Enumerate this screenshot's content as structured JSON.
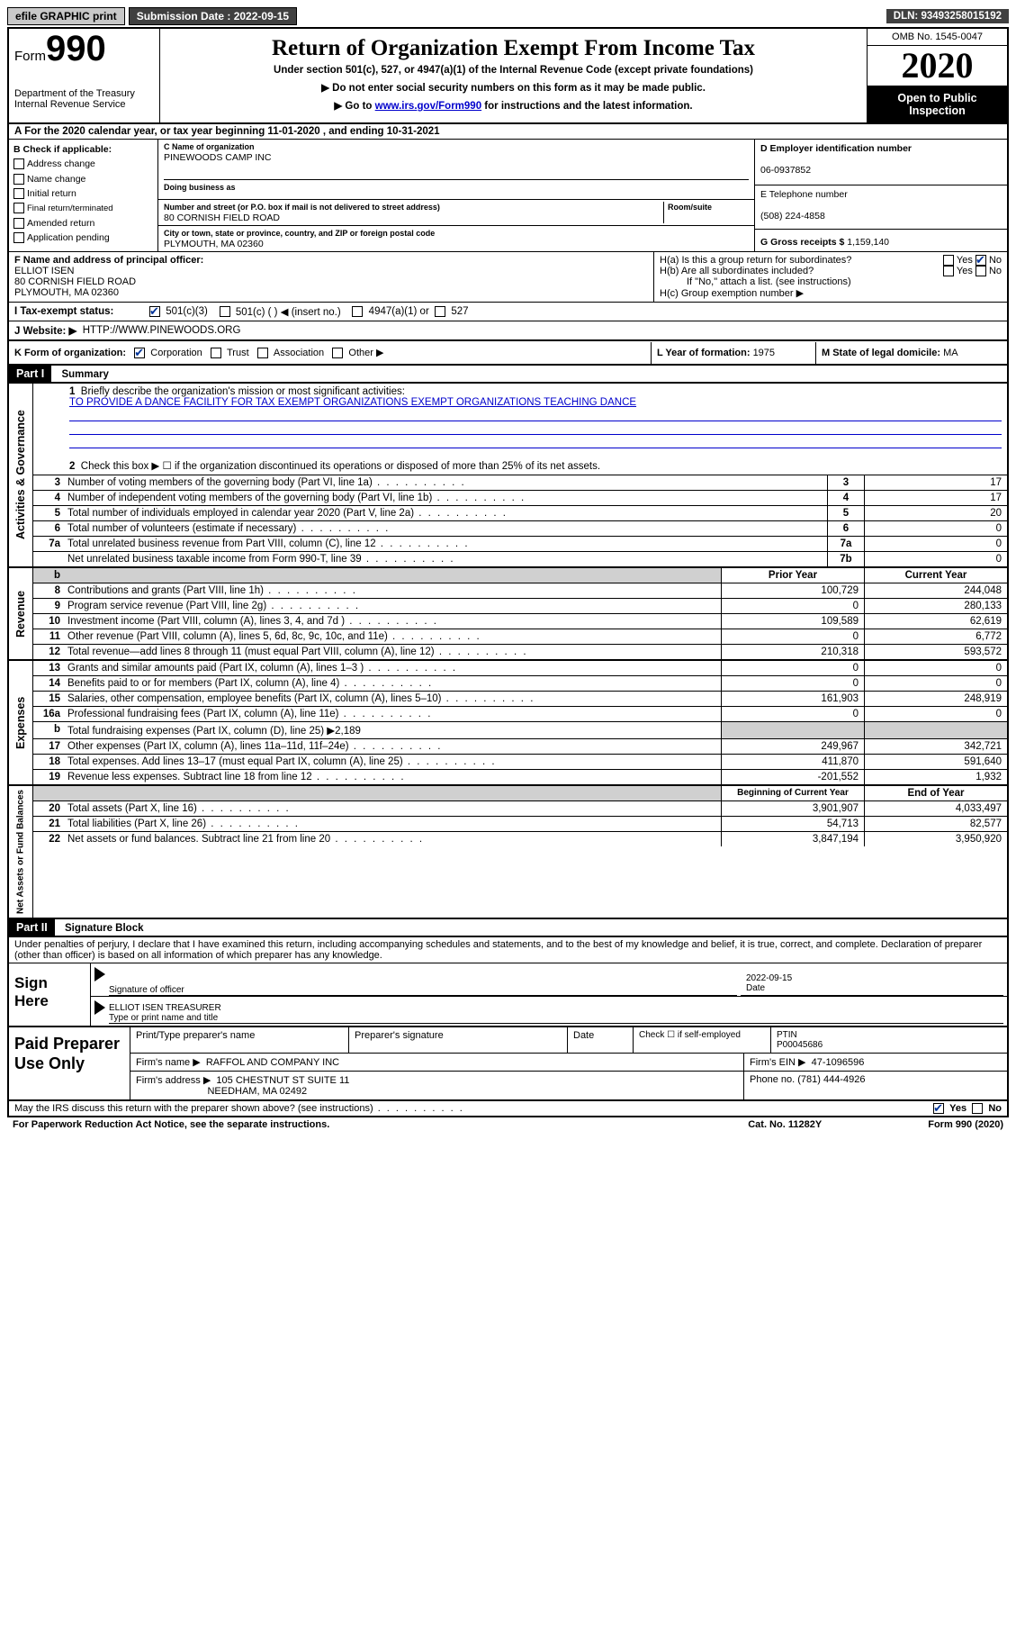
{
  "topbar": {
    "efile": "efile GRAPHIC print",
    "submission_label": "Submission Date : 2022-09-15",
    "dln": "DLN: 93493258015192"
  },
  "header": {
    "form_word": "Form",
    "form_num": "990",
    "dept1": "Department of the Treasury",
    "dept2": "Internal Revenue Service",
    "title": "Return of Organization Exempt From Income Tax",
    "sub1": "Under section 501(c), 527, or 4947(a)(1) of the Internal Revenue Code (except private foundations)",
    "sub2": "▶ Do not enter social security numbers on this form as it may be made public.",
    "sub3a": "▶ Go to ",
    "sub3link": "www.irs.gov/Form990",
    "sub3b": " for instructions and the latest information.",
    "omb": "OMB No. 1545-0047",
    "year": "2020",
    "open": "Open to Public Inspection"
  },
  "row_a": "A For the 2020 calendar year, or tax year beginning 11-01-2020   , and ending 10-31-2021",
  "section_b": {
    "b_label": "B Check if applicable:",
    "b_items": [
      "Address change",
      "Name change",
      "Initial return",
      "Final return/terminated",
      "Amended return",
      "Application pending"
    ],
    "c_label": "C Name of organization",
    "org_name": "PINEWOODS CAMP INC",
    "dba_label": "Doing business as",
    "street_label": "Number and street (or P.O. box if mail is not delivered to street address)",
    "room_label": "Room/suite",
    "street": "80 CORNISH FIELD ROAD",
    "city_label": "City or town, state or province, country, and ZIP or foreign postal code",
    "city": "PLYMOUTH, MA  02360",
    "d_label": "D Employer identification number",
    "ein": "06-0937852",
    "e_label": "E Telephone number",
    "phone": "(508) 224-4858",
    "g_label": "G Gross receipts $ ",
    "gross": "1,159,140"
  },
  "section_fh": {
    "f_label": "F Name and address of principal officer:",
    "officer_name": "ELLIOT ISEN",
    "officer_addr1": "80 CORNISH FIELD ROAD",
    "officer_addr2": "PLYMOUTH, MA  02360",
    "ha": "H(a)  Is this a group return for subordinates?",
    "hb": "H(b)  Are all subordinates included?",
    "hb_note": "If \"No,\" attach a list. (see instructions)",
    "hc": "H(c)  Group exemption number ▶",
    "yes": "Yes",
    "no": "No"
  },
  "tax_exempt": {
    "i_label": "I    Tax-exempt status:",
    "opt1": "501(c)(3)",
    "opt2": "501(c) (  ) ◀ (insert no.)",
    "opt3": "4947(a)(1) or",
    "opt4": "527"
  },
  "website": {
    "j_label": "J   Website: ▶",
    "url": "HTTP://WWW.PINEWOODS.ORG"
  },
  "row_k": {
    "k_label": "K Form of organization:",
    "opts": [
      "Corporation",
      "Trust",
      "Association",
      "Other ▶"
    ],
    "l_label": "L Year of formation: ",
    "l_val": "1975",
    "m_label": "M State of legal domicile: ",
    "m_val": "MA"
  },
  "part1": {
    "tag": "Part I",
    "title": "Summary",
    "q1": "Briefly describe the organization's mission or most significant activities:",
    "mission": "TO PROVIDE A DANCE FACILITY FOR TAX EXEMPT ORGANIZATIONS EXEMPT ORGANIZATIONS TEACHING DANCE",
    "q2": "Check this box ▶ ☐  if the organization discontinued its operations or disposed of more than 25% of its net assets."
  },
  "governance": {
    "side": "Activities & Governance",
    "rows": [
      {
        "n": "3",
        "d": "Number of voting members of the governing body (Part VI, line 1a)",
        "b": "3",
        "v": "17"
      },
      {
        "n": "4",
        "d": "Number of independent voting members of the governing body (Part VI, line 1b)",
        "b": "4",
        "v": "17"
      },
      {
        "n": "5",
        "d": "Total number of individuals employed in calendar year 2020 (Part V, line 2a)",
        "b": "5",
        "v": "20"
      },
      {
        "n": "6",
        "d": "Total number of volunteers (estimate if necessary)",
        "b": "6",
        "v": "0"
      },
      {
        "n": "7a",
        "d": "Total unrelated business revenue from Part VIII, column (C), line 12",
        "b": "7a",
        "v": "0"
      },
      {
        "n": "",
        "d": "Net unrelated business taxable income from Form 990-T, line 39",
        "b": "7b",
        "v": "0"
      }
    ]
  },
  "revenue": {
    "side": "Revenue",
    "head_prior": "Prior Year",
    "head_curr": "Current Year",
    "rows": [
      {
        "n": "8",
        "d": "Contributions and grants (Part VIII, line 1h)",
        "p": "100,729",
        "c": "244,048"
      },
      {
        "n": "9",
        "d": "Program service revenue (Part VIII, line 2g)",
        "p": "0",
        "c": "280,133"
      },
      {
        "n": "10",
        "d": "Investment income (Part VIII, column (A), lines 3, 4, and 7d )",
        "p": "109,589",
        "c": "62,619"
      },
      {
        "n": "11",
        "d": "Other revenue (Part VIII, column (A), lines 5, 6d, 8c, 9c, 10c, and 11e)",
        "p": "0",
        "c": "6,772"
      },
      {
        "n": "12",
        "d": "Total revenue—add lines 8 through 11 (must equal Part VIII, column (A), line 12)",
        "p": "210,318",
        "c": "593,572"
      }
    ]
  },
  "expenses": {
    "side": "Expenses",
    "rows": [
      {
        "n": "13",
        "d": "Grants and similar amounts paid (Part IX, column (A), lines 1–3 )",
        "p": "0",
        "c": "0"
      },
      {
        "n": "14",
        "d": "Benefits paid to or for members (Part IX, column (A), line 4)",
        "p": "0",
        "c": "0"
      },
      {
        "n": "15",
        "d": "Salaries, other compensation, employee benefits (Part IX, column (A), lines 5–10)",
        "p": "161,903",
        "c": "248,919"
      },
      {
        "n": "16a",
        "d": "Professional fundraising fees (Part IX, column (A), line 11e)",
        "p": "0",
        "c": "0"
      },
      {
        "n": "b",
        "d": "Total fundraising expenses (Part IX, column (D), line 25) ▶2,189",
        "p": "",
        "c": "",
        "shade": true
      },
      {
        "n": "17",
        "d": "Other expenses (Part IX, column (A), lines 11a–11d, 11f–24e)",
        "p": "249,967",
        "c": "342,721"
      },
      {
        "n": "18",
        "d": "Total expenses. Add lines 13–17 (must equal Part IX, column (A), line 25)",
        "p": "411,870",
        "c": "591,640"
      },
      {
        "n": "19",
        "d": "Revenue less expenses. Subtract line 18 from line 12",
        "p": "-201,552",
        "c": "1,932"
      }
    ]
  },
  "netassets": {
    "side": "Net Assets or Fund Balances",
    "head_beg": "Beginning of Current Year",
    "head_end": "End of Year",
    "rows": [
      {
        "n": "20",
        "d": "Total assets (Part X, line 16)",
        "p": "3,901,907",
        "c": "4,033,497"
      },
      {
        "n": "21",
        "d": "Total liabilities (Part X, line 26)",
        "p": "54,713",
        "c": "82,577"
      },
      {
        "n": "22",
        "d": "Net assets or fund balances. Subtract line 21 from line 20",
        "p": "3,847,194",
        "c": "3,950,920"
      }
    ]
  },
  "part2": {
    "tag": "Part II",
    "title": "Signature Block",
    "penalty": "Under penalties of perjury, I declare that I have examined this return, including accompanying schedules and statements, and to the best of my knowledge and belief, it is true, correct, and complete. Declaration of preparer (other than officer) is based on all information of which preparer has any knowledge."
  },
  "sign": {
    "left": "Sign Here",
    "sig_officer": "Signature of officer",
    "date_label": "Date",
    "date": "2022-09-15",
    "name_title": "ELLIOT ISEN  TREASURER",
    "type_label": "Type or print name and title"
  },
  "prep": {
    "left": "Paid Preparer Use Only",
    "print_label": "Print/Type preparer's name",
    "sig_label": "Preparer's signature",
    "date_label": "Date",
    "check_label": "Check ☐ if self-employed",
    "ptin_label": "PTIN",
    "ptin": "P00045686",
    "firm_name_label": "Firm's name    ▶",
    "firm_name": "RAFFOL AND COMPANY INC",
    "firm_ein_label": "Firm's EIN ▶",
    "firm_ein": "47-1096596",
    "firm_addr_label": "Firm's address ▶",
    "firm_addr1": "105 CHESTNUT ST SUITE 11",
    "firm_addr2": "NEEDHAM, MA  02492",
    "phone_label": "Phone no. ",
    "phone": "(781) 444-4926"
  },
  "footer": {
    "discuss": "May the IRS discuss this return with the preparer shown above? (see instructions)",
    "yes": "Yes",
    "no": "No",
    "paperwork": "For Paperwork Reduction Act Notice, see the separate instructions.",
    "cat": "Cat. No. 11282Y",
    "form": "Form 990 (2020)"
  }
}
